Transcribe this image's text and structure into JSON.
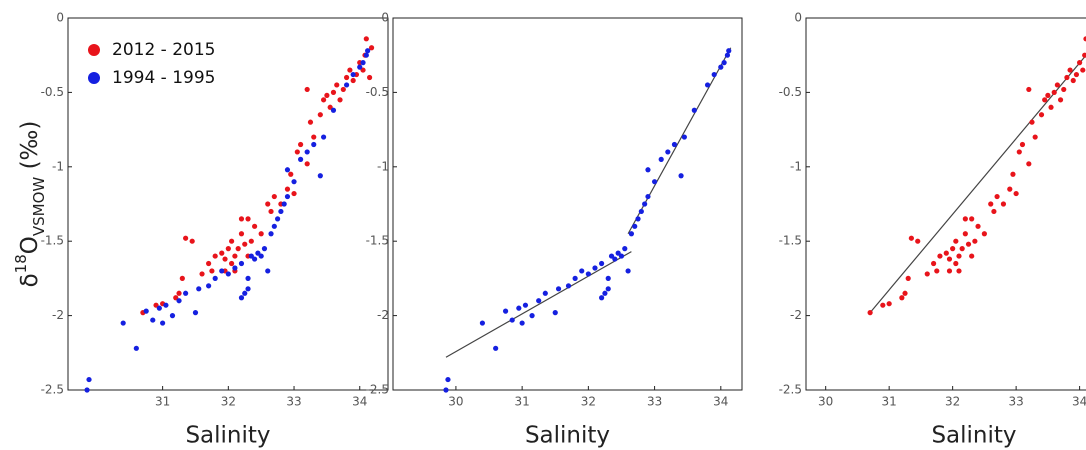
{
  "chart_data": [
    {
      "type": "scatter",
      "y_label": [
        "δ",
        "18",
        "O",
        "VSMOW",
        " (‰)"
      ],
      "x_label": "Salinity",
      "xlim": [
        29.56,
        34.43
      ],
      "ylim": [
        -2.5,
        0
      ],
      "xticks": [
        31,
        32,
        33,
        34
      ],
      "yticks": [
        0,
        -0.5,
        -1,
        -1.5,
        -2,
        -2.5
      ],
      "legend": "upper left",
      "series": [
        {
          "name": "2012 - 2015",
          "color": "#e8141b",
          "x": [
            30.7,
            30.9,
            31.0,
            31.2,
            31.25,
            31.3,
            31.35,
            31.45,
            31.6,
            31.7,
            31.75,
            31.8,
            31.9,
            31.95,
            32.0,
            32.05,
            32.1,
            32.1,
            32.15,
            32.2,
            32.25,
            32.3,
            32.35,
            32.4,
            32.5,
            32.6,
            32.65,
            32.7,
            32.8,
            32.9,
            32.95,
            33.0,
            33.05,
            33.1,
            33.2,
            33.25,
            33.3,
            33.4,
            33.45,
            33.5,
            33.55,
            33.6,
            33.65,
            33.7,
            33.75,
            33.8,
            33.85,
            33.9,
            33.95,
            34.0,
            34.05,
            34.08,
            34.1,
            34.15,
            34.18,
            33.2,
            32.2,
            31.95,
            32.05,
            32.3
          ],
          "y": [
            -1.98,
            -1.93,
            -1.92,
            -1.88,
            -1.85,
            -1.75,
            -1.48,
            -1.5,
            -1.72,
            -1.65,
            -1.7,
            -1.6,
            -1.58,
            -1.62,
            -1.55,
            -1.5,
            -1.6,
            -1.7,
            -1.55,
            -1.45,
            -1.52,
            -1.35,
            -1.5,
            -1.4,
            -1.45,
            -1.25,
            -1.3,
            -1.2,
            -1.25,
            -1.15,
            -1.05,
            -1.18,
            -0.9,
            -0.85,
            -0.98,
            -0.7,
            -0.8,
            -0.65,
            -0.55,
            -0.52,
            -0.6,
            -0.5,
            -0.45,
            -0.55,
            -0.48,
            -0.4,
            -0.35,
            -0.42,
            -0.38,
            -0.3,
            -0.35,
            -0.25,
            -0.14,
            -0.4,
            -0.2,
            -0.48,
            -1.35,
            -1.7,
            -1.65,
            -1.6
          ]
        },
        {
          "name": "1994 - 1995",
          "color": "#1520e0",
          "x": [
            29.85,
            29.88,
            30.4,
            30.6,
            30.75,
            30.85,
            30.95,
            31.0,
            31.05,
            31.15,
            31.25,
            31.35,
            31.5,
            31.55,
            31.7,
            31.8,
            31.9,
            32.0,
            32.1,
            32.2,
            32.25,
            32.3,
            32.35,
            32.4,
            32.45,
            32.5,
            32.55,
            32.6,
            32.65,
            32.7,
            32.75,
            32.8,
            32.85,
            32.9,
            33.0,
            33.1,
            33.2,
            33.3,
            33.45,
            33.6,
            33.8,
            33.9,
            34.0,
            34.05,
            34.1,
            34.12,
            32.2,
            32.3,
            32.9,
            33.4
          ],
          "y": [
            -2.5,
            -2.43,
            -2.05,
            -2.22,
            -1.97,
            -2.03,
            -1.95,
            -2.05,
            -1.93,
            -2.0,
            -1.9,
            -1.85,
            -1.98,
            -1.82,
            -1.8,
            -1.75,
            -1.7,
            -1.72,
            -1.68,
            -1.65,
            -1.85,
            -1.75,
            -1.6,
            -1.62,
            -1.58,
            -1.6,
            -1.55,
            -1.7,
            -1.45,
            -1.4,
            -1.35,
            -1.3,
            -1.25,
            -1.2,
            -1.1,
            -0.95,
            -0.9,
            -0.85,
            -0.8,
            -0.62,
            -0.45,
            -0.38,
            -0.33,
            -0.3,
            -0.25,
            -0.22,
            -1.88,
            -1.82,
            -1.02,
            -1.06
          ]
        }
      ]
    },
    {
      "type": "scatter",
      "x_label": "Salinity",
      "xlim": [
        29.05,
        34.32
      ],
      "ylim": [
        -2.5,
        0
      ],
      "xticks": [
        30,
        31,
        32,
        33,
        34
      ],
      "yticks": [
        0,
        -0.5,
        -1,
        -1.5,
        -2,
        -2.5
      ],
      "series": [
        {
          "color": "#1520e0",
          "x": [
            29.85,
            29.88,
            30.4,
            30.6,
            30.75,
            30.85,
            30.95,
            31.0,
            31.05,
            31.15,
            31.25,
            31.35,
            31.5,
            31.55,
            31.7,
            31.8,
            31.9,
            32.0,
            32.1,
            32.2,
            32.25,
            32.3,
            32.35,
            32.4,
            32.45,
            32.5,
            32.55,
            32.6,
            32.65,
            32.7,
            32.75,
            32.8,
            32.85,
            32.9,
            33.0,
            33.1,
            33.2,
            33.3,
            33.45,
            33.6,
            33.8,
            33.9,
            34.0,
            34.05,
            34.1,
            34.12,
            32.2,
            32.3,
            32.9,
            33.4
          ],
          "y": [
            -2.5,
            -2.43,
            -2.05,
            -2.22,
            -1.97,
            -2.03,
            -1.95,
            -2.05,
            -1.93,
            -2.0,
            -1.9,
            -1.85,
            -1.98,
            -1.82,
            -1.8,
            -1.75,
            -1.7,
            -1.72,
            -1.68,
            -1.65,
            -1.85,
            -1.75,
            -1.6,
            -1.62,
            -1.58,
            -1.6,
            -1.55,
            -1.7,
            -1.45,
            -1.4,
            -1.35,
            -1.3,
            -1.25,
            -1.2,
            -1.1,
            -0.95,
            -0.9,
            -0.85,
            -0.8,
            -0.62,
            -0.45,
            -0.38,
            -0.33,
            -0.3,
            -0.25,
            -0.22,
            -1.88,
            -1.82,
            -1.02,
            -1.06
          ]
        }
      ],
      "lines": [
        {
          "color": "#444444",
          "x": [
            29.85,
            32.65
          ],
          "y": [
            -2.28,
            -1.57
          ]
        },
        {
          "color": "#444444",
          "x": [
            32.6,
            34.15
          ],
          "y": [
            -1.45,
            -0.2
          ]
        }
      ]
    },
    {
      "type": "scatter",
      "x_label": "Salinity",
      "xlim": [
        29.69,
        34.4
      ],
      "ylim": [
        -2.5,
        0
      ],
      "xticks": [
        30,
        31,
        32,
        33,
        34
      ],
      "yticks": [
        0,
        -0.5,
        -1,
        -1.5,
        -2,
        -2.5
      ],
      "series": [
        {
          "color": "#e8141b",
          "x": [
            30.7,
            30.9,
            31.0,
            31.2,
            31.25,
            31.3,
            31.35,
            31.45,
            31.6,
            31.7,
            31.75,
            31.8,
            31.9,
            31.95,
            32.0,
            32.05,
            32.1,
            32.1,
            32.15,
            32.2,
            32.25,
            32.3,
            32.35,
            32.4,
            32.5,
            32.6,
            32.65,
            32.7,
            32.8,
            32.9,
            32.95,
            33.0,
            33.05,
            33.1,
            33.2,
            33.25,
            33.3,
            33.4,
            33.45,
            33.5,
            33.55,
            33.6,
            33.65,
            33.7,
            33.75,
            33.8,
            33.85,
            33.9,
            33.95,
            34.0,
            34.05,
            34.08,
            34.1,
            34.15,
            34.18,
            33.2,
            32.2,
            31.95,
            32.05,
            32.3
          ],
          "y": [
            -1.98,
            -1.93,
            -1.92,
            -1.88,
            -1.85,
            -1.75,
            -1.48,
            -1.5,
            -1.72,
            -1.65,
            -1.7,
            -1.6,
            -1.58,
            -1.62,
            -1.55,
            -1.5,
            -1.6,
            -1.7,
            -1.55,
            -1.45,
            -1.52,
            -1.35,
            -1.5,
            -1.4,
            -1.45,
            -1.25,
            -1.3,
            -1.2,
            -1.25,
            -1.15,
            -1.05,
            -1.18,
            -0.9,
            -0.85,
            -0.98,
            -0.7,
            -0.8,
            -0.65,
            -0.55,
            -0.52,
            -0.6,
            -0.5,
            -0.45,
            -0.55,
            -0.48,
            -0.4,
            -0.35,
            -0.42,
            -0.38,
            -0.3,
            -0.35,
            -0.25,
            -0.14,
            -0.4,
            -0.2,
            -0.48,
            -1.35,
            -1.7,
            -1.65,
            -1.6
          ]
        }
      ],
      "lines": [
        {
          "color": "#444444",
          "x": [
            30.7,
            34.2
          ],
          "y": [
            -1.98,
            -0.2
          ]
        }
      ]
    }
  ]
}
